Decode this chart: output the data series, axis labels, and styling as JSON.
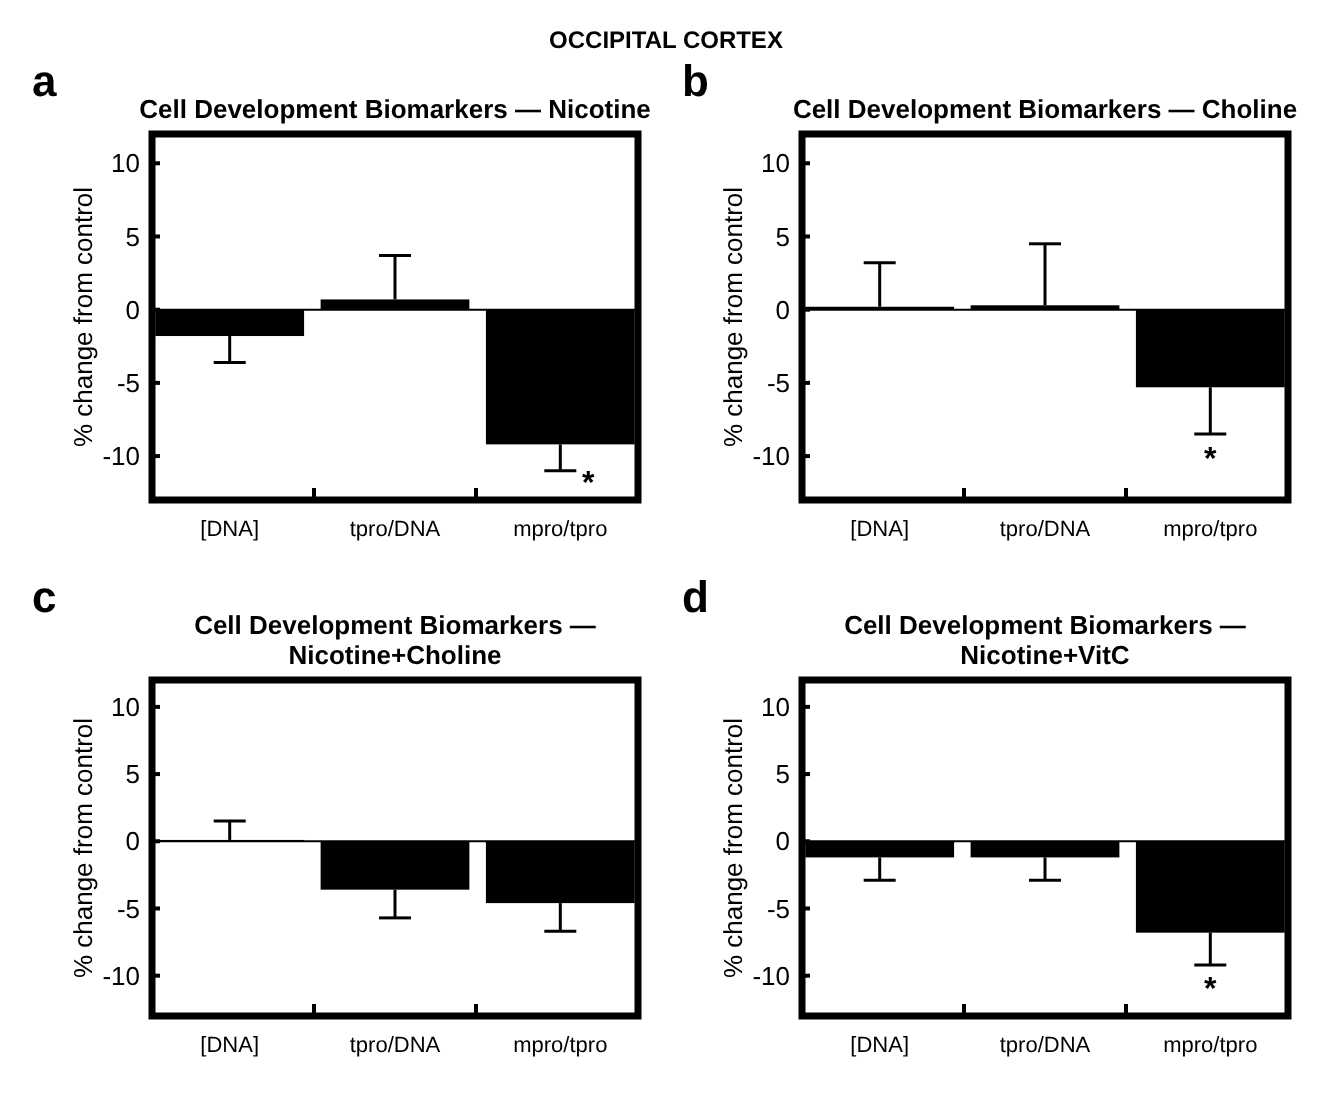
{
  "chart_data": [
    {
      "type": "bar",
      "title": "Cell Development Biomarkers — Nicotine",
      "ylabel": "% change from control",
      "categories": [
        "[DNA]",
        "tpro/DNA",
        "mpro/tpro"
      ],
      "values": [
        -1.8,
        0.7,
        -9.2
      ],
      "errors": [
        [
          -3.6,
          -1.8
        ],
        [
          0.7,
          3.7
        ],
        [
          -11.0,
          -9.2
        ]
      ],
      "color": "#000000",
      "ylim": [
        -13,
        12
      ],
      "yticks": [
        -10,
        -5,
        0,
        5,
        10
      ],
      "annotations": [
        "a",
        "OCCIPITAL CORTEX",
        "*"
      ]
    },
    {
      "type": "bar",
      "title": "Cell Development Biomarkers — Choline",
      "ylabel": "% change from control",
      "categories": [
        "[DNA]",
        "tpro/DNA",
        "mpro/tpro"
      ],
      "values": [
        0.2,
        0.3,
        -5.3
      ],
      "errors": [
        [
          0.2,
          3.2
        ],
        [
          0.3,
          4.5
        ],
        [
          -8.5,
          -5.3
        ]
      ],
      "color": "#000000",
      "ylim": [
        -13,
        12
      ],
      "yticks": [
        -10,
        -5,
        0,
        5,
        10
      ],
      "annotations": [
        "b",
        "*"
      ]
    },
    {
      "type": "bar",
      "title": "Cell Development Biomarkers — Nicotine+Choline",
      "ylabel": "% change from control",
      "categories": [
        "[DNA]",
        "tpro/DNA",
        "mpro/tpro"
      ],
      "values": [
        0.1,
        -3.6,
        -4.6
      ],
      "errors": [
        [
          0.1,
          1.5
        ],
        [
          -5.7,
          -3.6
        ],
        [
          -6.7,
          -4.6
        ]
      ],
      "color": "#000000",
      "ylim": [
        -13,
        12
      ],
      "yticks": [
        -10,
        -5,
        0,
        5,
        10
      ],
      "annotations": [
        "c"
      ]
    },
    {
      "type": "bar",
      "title": "Cell Development Biomarkers — Nicotine+VitC",
      "ylabel": "% change from control",
      "categories": [
        "[DNA]",
        "tpro/DNA",
        "mpro/tpro"
      ],
      "values": [
        -1.2,
        -1.2,
        -6.8
      ],
      "errors": [
        [
          -2.9,
          -1.2
        ],
        [
          -2.9,
          -1.2
        ],
        [
          -9.2,
          -6.8
        ]
      ],
      "color": "#000000",
      "ylim": [
        -13,
        12
      ],
      "yticks": [
        -10,
        -5,
        0,
        5,
        10
      ],
      "annotations": [
        "d",
        "*"
      ]
    }
  ]
}
